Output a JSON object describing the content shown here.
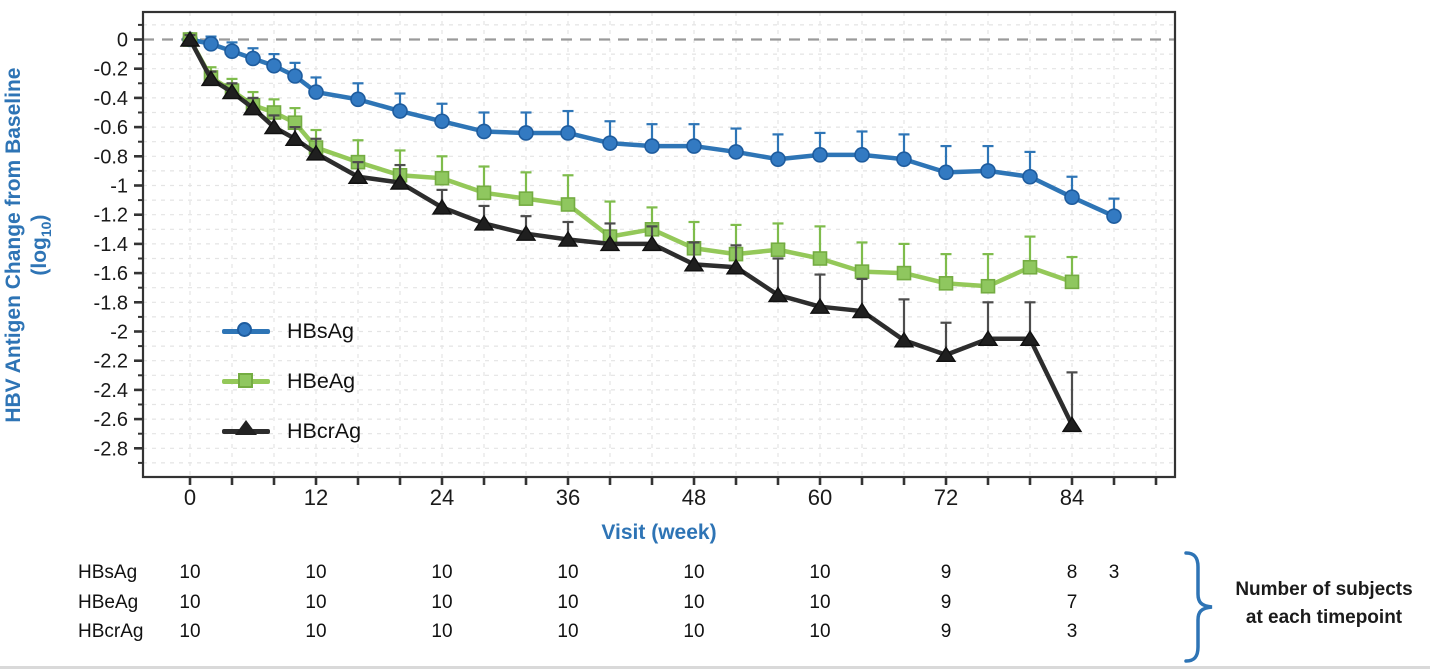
{
  "chart_data": {
    "type": "line",
    "title": "",
    "xlabel": "Visit (week)",
    "ylabel_line1": "HBV Antigen Change from Baseline",
    "ylabel_line2_prefix": "(log",
    "ylabel_subscript": "10",
    "ylabel_line2_suffix": ")",
    "x_axis": {
      "labeled_ticks": [
        0,
        12,
        24,
        36,
        48,
        60,
        72,
        84
      ],
      "minor_tick_step": 4,
      "minor_tick_max": 92,
      "range": [
        -4.5,
        94
      ]
    },
    "y_axis": {
      "labeled_ticks": [
        0,
        -0.2,
        -0.4,
        -0.6,
        -0.8,
        -1,
        -1.2,
        -1.4,
        -1.6,
        -1.8,
        -2,
        -2.2,
        -2.4,
        -2.6,
        -2.8
      ],
      "minor_step": 0.1,
      "range": [
        0.19,
        -2.99
      ]
    },
    "reference_line_y": 0,
    "grid": true,
    "legend_position": "inside-left-lower",
    "series": [
      {
        "name": "HBsAg",
        "marker": "circle",
        "line_color": "#2E75B6",
        "fill_color": "#337AC2",
        "edge_color": "#1E5C9E",
        "error_color": "#2E75B6",
        "x": [
          0,
          2,
          4,
          6,
          8,
          10,
          12,
          16,
          20,
          24,
          28,
          32,
          36,
          40,
          44,
          48,
          52,
          56,
          60,
          64,
          68,
          72,
          76,
          80,
          84,
          88
        ],
        "y": [
          0,
          -0.03,
          -0.08,
          -0.13,
          -0.18,
          -0.25,
          -0.36,
          -0.41,
          -0.49,
          -0.56,
          -0.63,
          -0.64,
          -0.64,
          -0.71,
          -0.73,
          -0.73,
          -0.77,
          -0.82,
          -0.79,
          -0.79,
          -0.82,
          -0.91,
          -0.9,
          -0.94,
          -1.08,
          -1.21
        ],
        "err_up": [
          0.03,
          0.05,
          0.06,
          0.07,
          0.08,
          0.09,
          0.1,
          0.11,
          0.12,
          0.12,
          0.13,
          0.14,
          0.15,
          0.15,
          0.15,
          0.15,
          0.16,
          0.17,
          0.15,
          0.16,
          0.17,
          0.18,
          0.17,
          0.17,
          0.14,
          0.12
        ]
      },
      {
        "name": "HBeAg",
        "marker": "square",
        "line_color": "#94C859",
        "fill_color": "#8FC75F",
        "edge_color": "#74AC42",
        "error_color": "#7FBC4C",
        "x": [
          0,
          2,
          4,
          6,
          8,
          10,
          12,
          16,
          20,
          24,
          28,
          32,
          36,
          40,
          44,
          48,
          52,
          56,
          60,
          64,
          68,
          72,
          76,
          80,
          84
        ],
        "y": [
          0,
          -0.26,
          -0.35,
          -0.45,
          -0.5,
          -0.57,
          -0.74,
          -0.84,
          -0.93,
          -0.95,
          -1.05,
          -1.09,
          -1.13,
          -1.35,
          -1.3,
          -1.43,
          -1.47,
          -1.44,
          -1.5,
          -1.59,
          -1.6,
          -1.67,
          -1.69,
          -1.56,
          -1.66
        ],
        "err_up": [
          0.03,
          0.07,
          0.08,
          0.09,
          0.09,
          0.1,
          0.12,
          0.15,
          0.17,
          0.15,
          0.18,
          0.18,
          0.2,
          0.24,
          0.15,
          0.18,
          0.2,
          0.18,
          0.22,
          0.2,
          0.2,
          0.2,
          0.22,
          0.21,
          0.17
        ]
      },
      {
        "name": "HBcrAg",
        "marker": "triangle",
        "line_color": "#2D2D2D",
        "fill_color": "#1F1F1F",
        "edge_color": "#111111",
        "error_color": "#4D4D4D",
        "x": [
          0,
          2,
          4,
          6,
          8,
          10,
          12,
          16,
          20,
          24,
          28,
          32,
          36,
          40,
          44,
          48,
          52,
          56,
          60,
          64,
          68,
          72,
          76,
          80,
          84
        ],
        "y": [
          0,
          -0.27,
          -0.36,
          -0.47,
          -0.6,
          -0.68,
          -0.78,
          -0.94,
          -0.98,
          -1.15,
          -1.26,
          -1.33,
          -1.37,
          -1.4,
          -1.4,
          -1.54,
          -1.56,
          -1.75,
          -1.83,
          -1.86,
          -2.06,
          -2.16,
          -2.05,
          -2.05,
          -2.64
        ],
        "err_up": [
          0.03,
          0.05,
          0.06,
          0.07,
          0.08,
          0.08,
          0.1,
          0.1,
          0.12,
          0.12,
          0.12,
          0.12,
          0.12,
          0.14,
          0.12,
          0.15,
          0.15,
          0.25,
          0.22,
          0.22,
          0.28,
          0.22,
          0.25,
          0.25,
          0.36
        ]
      }
    ]
  },
  "counts_table": {
    "column_weeks": [
      0,
      12,
      24,
      36,
      48,
      60,
      72,
      84,
      88
    ],
    "rows": [
      {
        "label": "HBsAg",
        "counts": [
          "10",
          "10",
          "10",
          "10",
          "10",
          "10",
          "9",
          "8",
          "3"
        ]
      },
      {
        "label": "HBeAg",
        "counts": [
          "10",
          "10",
          "10",
          "10",
          "10",
          "10",
          "9",
          "7"
        ]
      },
      {
        "label": "HBcrAg",
        "counts": [
          "10",
          "10",
          "10",
          "10",
          "10",
          "10",
          "9",
          "3"
        ]
      }
    ]
  },
  "annotation": {
    "line1": "Number of subjects",
    "line2": "at each timepoint"
  },
  "colors": {
    "axis_title_blue": "#2E74B5",
    "brace_blue": "#2E74B5",
    "grid": "#E4E4E4",
    "zero_line": "#9A9A9A",
    "axis": "#333333",
    "tick_text": "#1A1A1A"
  }
}
